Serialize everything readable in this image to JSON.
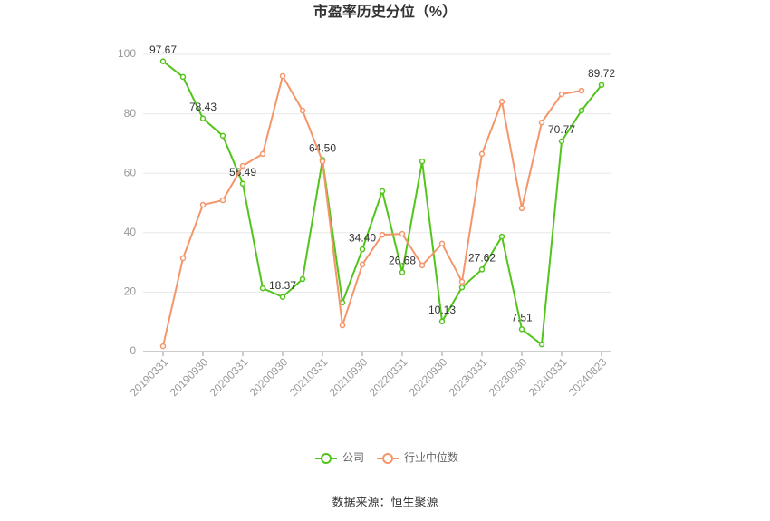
{
  "chart_data": {
    "type": "line",
    "title": "市盈率历史分位（%）",
    "source": "数据来源：恒生聚源",
    "categories": [
      "20190331",
      null,
      "20190930",
      null,
      "20200331",
      null,
      "20200930",
      null,
      "20210331",
      null,
      "20210930",
      null,
      "20220331",
      null,
      "20220930",
      null,
      "20230331",
      null,
      "20230930",
      null,
      "20240331",
      null,
      "20240823"
    ],
    "series": [
      {
        "name": "公司",
        "color": "#52c41a",
        "values": [
          97.67,
          92.4,
          78.43,
          72.6,
          56.49,
          21.3,
          18.37,
          24.4,
          64.5,
          16.5,
          34.4,
          54.0,
          26.68,
          64.0,
          10.13,
          21.6,
          27.62,
          38.7,
          7.51,
          2.4,
          70.77,
          81.1,
          89.72
        ],
        "value_labels": [
          "97.67",
          null,
          "78.43",
          null,
          "56.49",
          null,
          "18.37",
          null,
          "64.50",
          null,
          "34.40",
          null,
          "26.68",
          null,
          "10.13",
          null,
          "27.62",
          null,
          "7.51",
          null,
          "70.77",
          null,
          "89.72"
        ]
      },
      {
        "name": "行业中位数",
        "color": "#f4956a",
        "values": [
          1.8,
          31.4,
          49.4,
          50.9,
          62.5,
          66.5,
          92.7,
          81.1,
          64.0,
          8.8,
          29.3,
          39.3,
          39.6,
          29.0,
          36.3,
          23.5,
          66.5,
          84.1,
          48.2,
          77.1,
          86.6,
          87.8,
          null
        ]
      }
    ],
    "ylim": [
      0,
      100
    ],
    "yticks": [
      0,
      20,
      40,
      60,
      80,
      100
    ],
    "grid": true
  }
}
